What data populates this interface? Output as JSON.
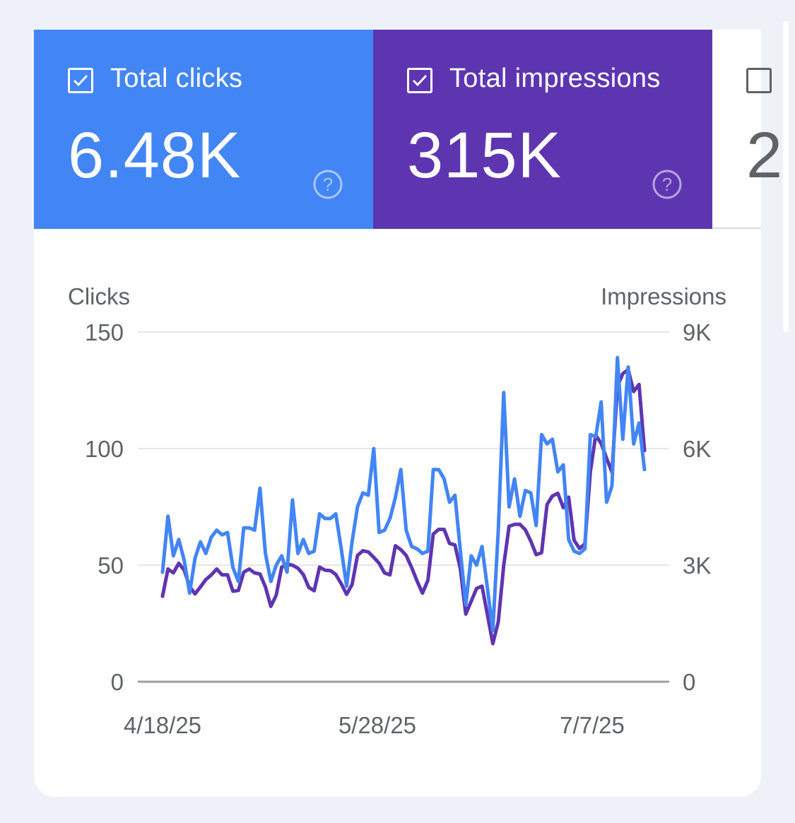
{
  "metrics": {
    "clicks": {
      "label": "Total clicks",
      "value": "6.48K",
      "checked": true,
      "color": "#4285f4"
    },
    "impressions": {
      "label": "Total impressions",
      "value": "315K",
      "checked": true,
      "color": "#5e35b1"
    },
    "ctr": {
      "label": "",
      "value": "2",
      "checked": false
    }
  },
  "chart_data": {
    "type": "line",
    "y_left_label": "Clicks",
    "y_right_label": "Impressions",
    "y_left_ticks": [
      "150",
      "100",
      "50",
      "0"
    ],
    "y_right_ticks": [
      "9K",
      "6K",
      "3K",
      "0"
    ],
    "y_left_range": [
      0,
      150
    ],
    "y_right_range": [
      0,
      9000
    ],
    "x_ticks": [
      "4/18/25",
      "5/28/25",
      "7/7/25"
    ],
    "x_range": [
      "4/18/25",
      "7/23/25"
    ],
    "grid": true,
    "series": [
      {
        "name": "Total clicks",
        "axis": "left",
        "color": "#4285f4",
        "values": [
          47,
          71,
          54,
          61,
          52,
          38,
          53,
          60,
          55,
          62,
          65,
          63,
          64,
          49,
          43,
          66,
          66,
          65,
          83,
          55,
          43,
          50,
          54,
          47,
          78,
          55,
          61,
          55,
          56,
          72,
          70,
          70,
          72,
          57,
          41,
          60,
          75,
          81,
          80,
          100,
          64,
          65,
          70,
          79,
          91,
          65,
          58,
          57,
          55,
          56,
          91,
          91,
          87,
          77,
          80,
          56,
          33,
          54,
          50,
          58,
          40,
          22,
          65,
          124,
          75,
          87,
          71,
          82,
          81,
          67,
          106,
          102,
          104,
          90,
          93,
          61,
          56,
          55,
          57,
          106,
          105,
          120,
          77,
          84,
          139,
          104,
          135,
          102,
          111,
          91
        ]
      },
      {
        "name": "Total impressions",
        "axis": "right",
        "color": "#5e35b1",
        "values": [
          2200,
          2900,
          2800,
          3050,
          2870,
          2450,
          2260,
          2440,
          2630,
          2750,
          2900,
          2750,
          2750,
          2330,
          2350,
          2820,
          2900,
          2800,
          2770,
          2440,
          1940,
          2230,
          2950,
          3020,
          3000,
          2920,
          2760,
          2430,
          2340,
          2950,
          2870,
          2860,
          2760,
          2520,
          2250,
          2500,
          3250,
          3370,
          3340,
          3200,
          3050,
          2800,
          2750,
          3500,
          3400,
          3250,
          2940,
          2590,
          2280,
          2610,
          3800,
          3920,
          3920,
          3560,
          3520,
          2900,
          1740,
          2070,
          2400,
          2460,
          1720,
          980,
          1540,
          2990,
          4000,
          4050,
          4050,
          3910,
          3620,
          3270,
          3320,
          4560,
          4780,
          4850,
          4480,
          4750,
          3640,
          3430,
          3550,
          5400,
          6350,
          6130,
          5750,
          5390,
          7600,
          7930,
          8030,
          7470,
          7650,
          5950
        ]
      }
    ]
  }
}
